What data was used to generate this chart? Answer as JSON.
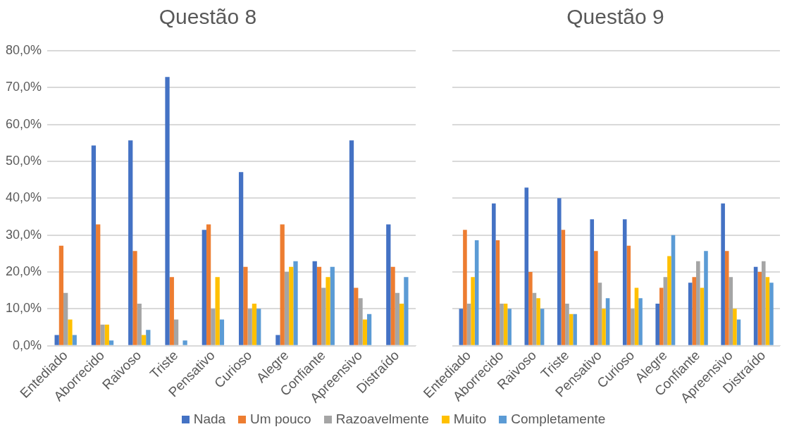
{
  "chart_data": [
    {
      "type": "bar",
      "title": "Questão 8",
      "categories": [
        "Entediado",
        "Aborrecido",
        "Raivoso",
        "Triste",
        "Pensativo",
        "Curioso",
        "Alegre",
        "Confiante",
        "Apreensivo",
        "Distraído"
      ],
      "series": [
        {
          "name": "Nada",
          "color": "#4472c4",
          "values": [
            2.9,
            54.3,
            55.7,
            72.9,
            31.4,
            47.1,
            2.9,
            22.9,
            55.7,
            32.9
          ]
        },
        {
          "name": "Um pouco",
          "color": "#ed7d31",
          "values": [
            27.1,
            32.9,
            25.7,
            18.6,
            32.9,
            21.4,
            32.9,
            21.4,
            15.7,
            21.4
          ]
        },
        {
          "name": "Razoavelmente",
          "color": "#a5a5a5",
          "values": [
            14.3,
            5.7,
            11.4,
            7.1,
            10,
            10,
            20,
            15.7,
            12.9,
            14.3
          ]
        },
        {
          "name": "Muito",
          "color": "#ffc000",
          "values": [
            7.1,
            5.7,
            2.9,
            0,
            18.6,
            11.4,
            21.4,
            18.6,
            7.1,
            11.4
          ]
        },
        {
          "name": "Completamente",
          "color": "#5b9bd5",
          "values": [
            2.9,
            1.4,
            4.3,
            1.4,
            7.1,
            10,
            22.9,
            21.4,
            8.6,
            18.6
          ]
        }
      ],
      "ylim": [
        0,
        80
      ],
      "yticks": [
        {
          "value": 0,
          "label": "0,0%"
        },
        {
          "value": 10,
          "label": "10,0%"
        },
        {
          "value": 20,
          "label": "20,0%"
        },
        {
          "value": 30,
          "label": "30,0%"
        },
        {
          "value": 40,
          "label": "40,0%"
        },
        {
          "value": 50,
          "label": "50,0%"
        },
        {
          "value": 60,
          "label": "60,0%"
        },
        {
          "value": 70,
          "label": "70,0%"
        },
        {
          "value": 80,
          "label": "80,0%"
        }
      ],
      "grid": "y",
      "legend": "bottom"
    },
    {
      "type": "bar",
      "title": "Questão 9",
      "categories": [
        "Entediado",
        "Aborrecido",
        "Raivoso",
        "Triste",
        "Pensativo",
        "Curioso",
        "Alegre",
        "Confiante",
        "Apreensivo",
        "Distraído"
      ],
      "series": [
        {
          "color": "#4472c4",
          "values": [
            10,
            38.6,
            42.9,
            40,
            34.3,
            34.3,
            11.4,
            17.1,
            38.6,
            21.4
          ]
        },
        {
          "color": "#ed7d31",
          "values": [
            31.4,
            28.6,
            20,
            31.4,
            25.7,
            27.1,
            15.7,
            18.6,
            25.7,
            20
          ]
        },
        {
          "color": "#a5a5a5",
          "values": [
            11.4,
            11.4,
            14.3,
            11.4,
            17.1,
            10,
            18.6,
            22.9,
            18.6,
            22.9
          ]
        },
        {
          "color": "#ffc000",
          "values": [
            18.6,
            11.4,
            12.9,
            8.6,
            10,
            15.7,
            24.3,
            15.7,
            10,
            18.6
          ]
        },
        {
          "color": "#5b9bd5",
          "values": [
            28.6,
            10,
            10,
            8.6,
            12.9,
            12.9,
            30,
            25.7,
            7.1,
            17.1
          ]
        }
      ],
      "ylim": [
        0,
        80
      ],
      "grid": "y",
      "tick_labels": "x"
    }
  ]
}
